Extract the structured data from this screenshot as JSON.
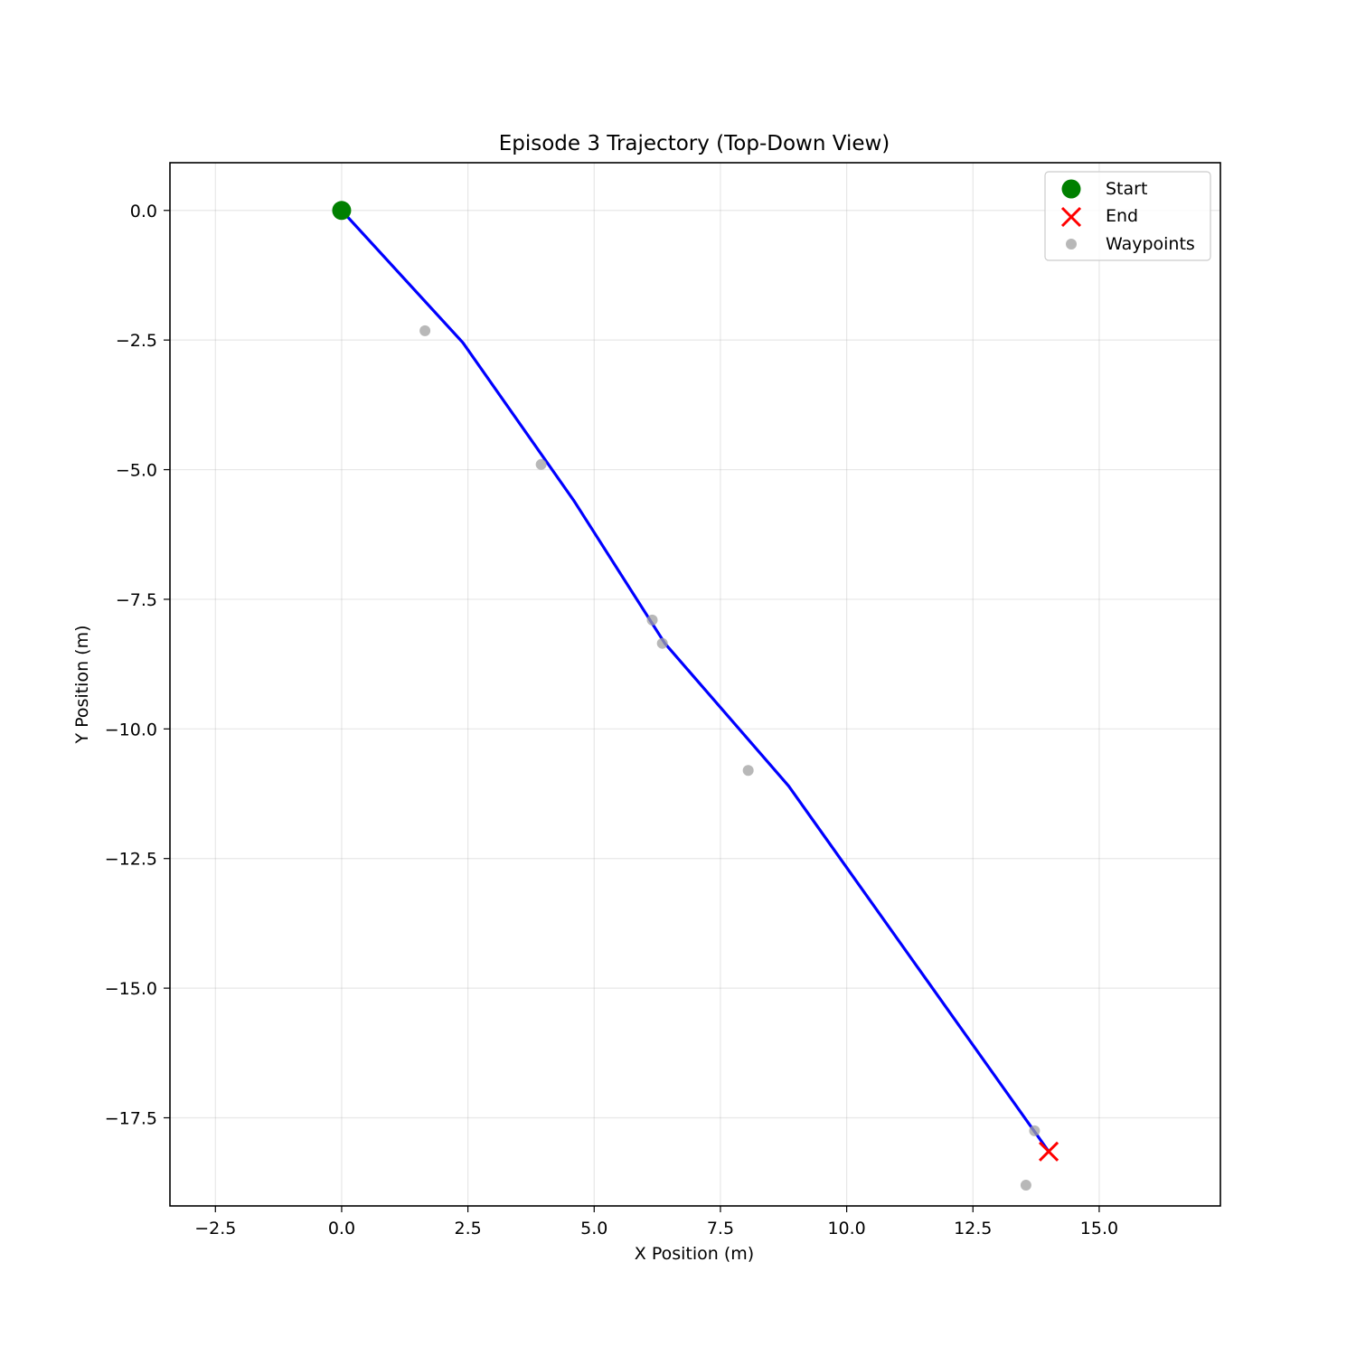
{
  "chart_data": {
    "type": "line",
    "title": "Episode 3 Trajectory (Top-Down View)",
    "xlabel": "X Position (m)",
    "ylabel": "Y Position (m)",
    "xlim": [
      -3.4,
      17.4
    ],
    "ylim": [
      -19.2,
      0.92
    ],
    "grid": true,
    "legend_position": "upper right",
    "x_ticks": [
      -2.5,
      0.0,
      2.5,
      5.0,
      7.5,
      10.0,
      12.5,
      15.0
    ],
    "x_tick_labels": [
      "−2.5",
      "0.0",
      "2.5",
      "5.0",
      "7.5",
      "10.0",
      "12.5",
      "15.0"
    ],
    "y_ticks": [
      0.0,
      -2.5,
      -5.0,
      -7.5,
      -10.0,
      -12.5,
      -15.0,
      -17.5
    ],
    "y_tick_labels": [
      "0.0",
      "−2.5",
      "−5.0",
      "−7.5",
      "−10.0",
      "−12.5",
      "−15.0",
      "−17.5"
    ],
    "trajectory": {
      "color": "#0000ff",
      "points": [
        [
          0.0,
          0.0
        ],
        [
          2.4,
          -2.55
        ],
        [
          4.6,
          -5.6
        ],
        [
          6.4,
          -8.35
        ],
        [
          8.85,
          -11.1
        ],
        [
          14.0,
          -18.15
        ]
      ]
    },
    "start": {
      "label": "Start",
      "x": 0.0,
      "y": 0.0,
      "color": "#008000"
    },
    "end": {
      "label": "End",
      "x": 14.0,
      "y": -18.15,
      "color": "#ff0000"
    },
    "waypoints": {
      "label": "Waypoints",
      "color": "#a0a0a0",
      "points": [
        [
          1.65,
          -2.32
        ],
        [
          3.95,
          -4.9
        ],
        [
          6.15,
          -7.9
        ],
        [
          6.35,
          -8.35
        ],
        [
          8.05,
          -10.8
        ],
        [
          13.72,
          -17.75
        ],
        [
          13.55,
          -18.8
        ]
      ]
    }
  }
}
